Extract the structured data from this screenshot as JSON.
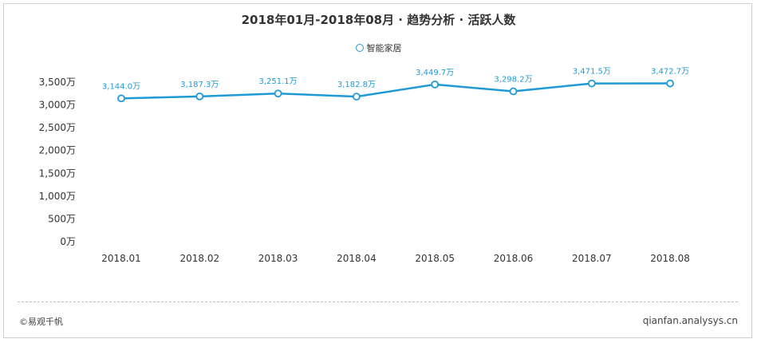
{
  "header": {
    "title": "2018年01月-2018年08月 · 趋势分析 · 活跃人数"
  },
  "legend": {
    "label": "智能家居"
  },
  "footer": {
    "left": "©易观千帆",
    "right": "qianfan.analysys.cn"
  },
  "colors": {
    "series": "#1f9ad6",
    "axis_text": "#333333",
    "label_text": "#1f9ad6"
  },
  "chart_data": {
    "type": "line",
    "categories": [
      "2018.01",
      "2018.02",
      "2018.03",
      "2018.04",
      "2018.05",
      "2018.06",
      "2018.07",
      "2018.08"
    ],
    "series": [
      {
        "name": "智能家居",
        "values": [
          3144.0,
          3187.3,
          3251.1,
          3182.8,
          3449.7,
          3298.2,
          3471.5,
          3472.7
        ],
        "labels": [
          "3,144.0万",
          "3,187.3万",
          "3,251.1万",
          "3,182.8万",
          "3,449.7万",
          "3,298.2万",
          "3,471.5万",
          "3,472.7万"
        ]
      }
    ],
    "yticks": [
      0,
      500,
      1000,
      1500,
      2000,
      2500,
      3000,
      3500
    ],
    "ytick_labels": [
      "0万",
      "500万",
      "1,000万",
      "1,500万",
      "2,000万",
      "2,500万",
      "3,000万",
      "3,500万"
    ],
    "ylim": [
      0,
      3500
    ],
    "grid": false,
    "legend_position": "top-center"
  }
}
